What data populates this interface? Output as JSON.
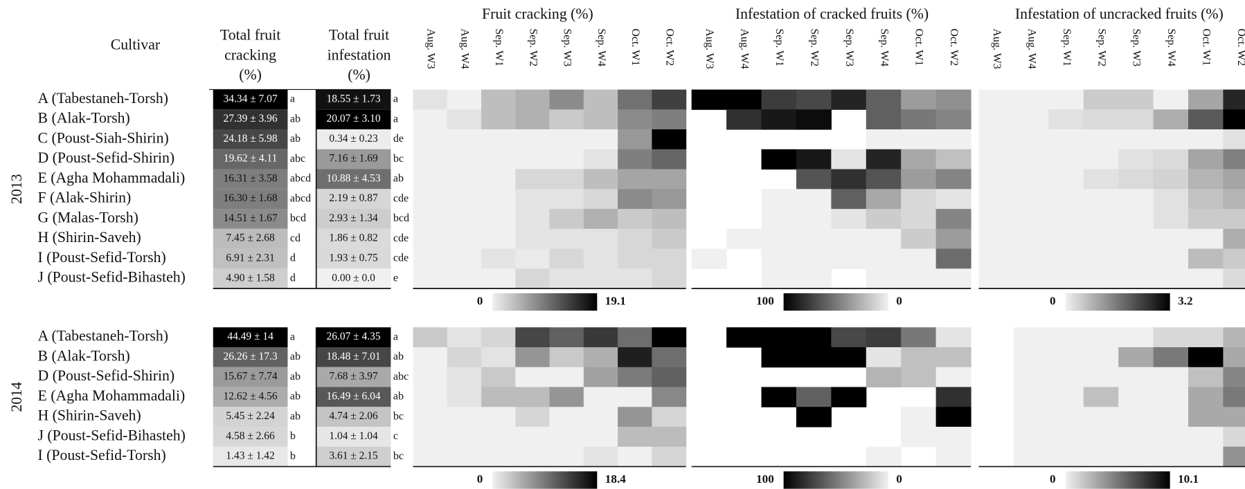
{
  "headers": {
    "cultivar": "Cultivar",
    "total_cracking": [
      "Total fruit",
      "cracking",
      "(%)"
    ],
    "total_infestation": [
      "Total fruit",
      "infestation",
      "(%)"
    ]
  },
  "panels": [
    "Fruit cracking (%)",
    "Infestation of cracked fruits (%)",
    "Infestation of uncracked fruits (%)"
  ],
  "weeks": [
    "Aug. W3",
    "Aug. W4",
    "Sep. W1",
    "Sep. W2",
    "Sep. W3",
    "Sep. W4",
    "Oct. W1",
    "Oct. W2"
  ],
  "years": [
    {
      "year": "2013",
      "scales": [
        [
          0,
          19.1
        ],
        [
          100,
          0
        ],
        [
          0,
          3.2
        ]
      ],
      "rows": [
        {
          "cultivar": "A (Tabestaneh-Torsh)",
          "cracking": {
            "mean": 34.34,
            "sd": 7.07,
            "label": "34.34 ± 7.07",
            "group": "a"
          },
          "infestation": {
            "mean": 18.55,
            "sd": 1.73,
            "label": "18.55 ± 1.73",
            "group": "a"
          },
          "heat": [
            [
              1,
              0,
              4,
              5,
              8,
              4,
              10,
              14
            ],
            [
              100,
              100,
              75,
              70,
              85,
              60,
              35,
              40
            ],
            [
              0,
              0,
              0,
              0.5,
              0.5,
              0,
              1,
              2.7
            ]
          ]
        },
        {
          "cultivar": "B (Alak-Torsh)",
          "cracking": {
            "mean": 27.39,
            "sd": 3.96,
            "label": "27.39 ± 3.96",
            "group": "ab"
          },
          "infestation": {
            "mean": 20.07,
            "sd": 3.1,
            "label": "20.07 ± 3.10",
            "group": "a"
          },
          "heat": [
            [
              0,
              1,
              4,
              5,
              3,
              4,
              8,
              9
            ],
            [
              null,
              80,
              90,
              95,
              null,
              60,
              50,
              45
            ],
            [
              0,
              0,
              0.2,
              0.3,
              0.3,
              0.9,
              2,
              3.2
            ]
          ]
        },
        {
          "cultivar": "C (Poust-Siah-Shirin)",
          "cracking": {
            "mean": 24.18,
            "sd": 5.98,
            "label": "24.18 ± 5.98",
            "group": "ab"
          },
          "infestation": {
            "mean": 0.34,
            "sd": 0.23,
            "label": "0.34 ± 0.23",
            "group": "de"
          },
          "heat": [
            [
              0,
              0,
              0,
              0,
              0,
              0,
              7,
              19.1
            ],
            [
              null,
              null,
              null,
              null,
              null,
              0,
              0,
              0
            ],
            [
              0,
              0,
              0,
              0,
              0,
              0,
              0,
              0.2
            ]
          ]
        },
        {
          "cultivar": "D (Poust-Sefid-Shirin)",
          "cracking": {
            "mean": 19.62,
            "sd": 4.11,
            "label": "19.62 ± 4.11",
            "group": "abc"
          },
          "infestation": {
            "mean": 7.16,
            "sd": 1.69,
            "label": "7.16 ± 1.69",
            "group": "bc"
          },
          "heat": [
            [
              0,
              0,
              0,
              0,
              0,
              1,
              9,
              11
            ],
            [
              null,
              null,
              100,
              90,
              5,
              85,
              30,
              20
            ],
            [
              0,
              0,
              0,
              0,
              0.2,
              0.3,
              1,
              1.5
            ]
          ]
        },
        {
          "cultivar": "E (Agha Mohammadali)",
          "cracking": {
            "mean": 16.31,
            "sd": 3.58,
            "label": "16.31 ± 3.58",
            "group": "abcd"
          },
          "infestation": {
            "mean": 10.88,
            "sd": 4.53,
            "label": "10.88 ± 4.53",
            "group": "ab"
          },
          "heat": [
            [
              0,
              0,
              0,
              2,
              2,
              4,
              6,
              6
            ],
            [
              null,
              null,
              null,
              65,
              80,
              65,
              35,
              45
            ],
            [
              0,
              0,
              0,
              0.2,
              0.3,
              0.4,
              0.8,
              1
            ]
          ]
        },
        {
          "cultivar": "F (Alak-Shirin)",
          "cracking": {
            "mean": 16.3,
            "sd": 1.68,
            "label": "16.30 ± 1.68",
            "group": "abcd"
          },
          "infestation": {
            "mean": 2.19,
            "sd": 0.87,
            "label": "2.19 ± 0.87",
            "group": "cde"
          },
          "heat": [
            [
              0,
              0,
              0,
              1,
              1,
              2,
              8,
              7
            ],
            [
              null,
              null,
              0,
              0,
              60,
              30,
              10,
              5
            ],
            [
              0,
              0,
              0,
              0,
              0,
              0.2,
              0.6,
              0.8
            ]
          ]
        },
        {
          "cultivar": "G (Malas-Torsh)",
          "cracking": {
            "mean": 14.51,
            "sd": 1.67,
            "label": "14.51 ± 1.67",
            "group": "bcd"
          },
          "infestation": {
            "mean": 2.93,
            "sd": 1.34,
            "label": "2.93 ± 1.34",
            "group": "bcd"
          },
          "heat": [
            [
              0,
              0,
              0,
              1,
              3,
              5,
              3,
              4
            ],
            [
              null,
              null,
              0,
              0,
              5,
              15,
              10,
              45
            ],
            [
              0,
              0,
              0,
              0,
              0,
              0.2,
              0.5,
              0.5
            ]
          ]
        },
        {
          "cultivar": "H (Shirin-Saveh)",
          "cracking": {
            "mean": 7.45,
            "sd": 2.68,
            "label": "7.45 ± 2.68",
            "group": "cd"
          },
          "infestation": {
            "mean": 1.86,
            "sd": 0.82,
            "label": "1.86 ± 0.82",
            "group": "cde"
          },
          "heat": [
            [
              0,
              0,
              0,
              1,
              1,
              1,
              2,
              3
            ],
            [
              null,
              0,
              0,
              0,
              0,
              0,
              15,
              35
            ],
            [
              0,
              0,
              0,
              0,
              0,
              0,
              0,
              0.9
            ]
          ]
        },
        {
          "cultivar": "I (Poust-Sefid-Torsh)",
          "cracking": {
            "mean": 6.91,
            "sd": 2.31,
            "label": "6.91 ± 2.31",
            "group": "d"
          },
          "infestation": {
            "mean": 1.93,
            "sd": 0.75,
            "label": "1.93 ± 0.75",
            "group": "cde"
          },
          "heat": [
            [
              0,
              0,
              1,
              0.5,
              2,
              1,
              2,
              2
            ],
            [
              0,
              null,
              0,
              0,
              0,
              0,
              0,
              55
            ],
            [
              0,
              0,
              0,
              0,
              0,
              0,
              0.7,
              0.5
            ]
          ]
        },
        {
          "cultivar": "J (Poust-Sefid-Bihasteh)",
          "cracking": {
            "mean": 4.9,
            "sd": 1.58,
            "label": "4.90 ± 1.58",
            "group": "d"
          },
          "infestation": {
            "mean": 0.0,
            "sd": 0.0,
            "label": "0.00 ± 0.0",
            "group": "e"
          },
          "heat": [
            [
              0,
              0,
              0,
              2,
              1,
              1,
              1,
              2
            ],
            [
              null,
              null,
              0,
              0,
              null,
              0,
              0,
              0
            ],
            [
              0,
              0,
              0,
              0,
              0,
              0,
              0,
              0.3
            ]
          ]
        }
      ]
    },
    {
      "year": "2014",
      "scales": [
        [
          0,
          18.4
        ],
        [
          100,
          0
        ],
        [
          0,
          10.1
        ]
      ],
      "rows": [
        {
          "cultivar": "A (Tabestaneh-Torsh)",
          "cracking": {
            "mean": 44.49,
            "sd": 14,
            "label": "44.49 ± 14",
            "group": "a"
          },
          "infestation": {
            "mean": 26.07,
            "sd": 4.35,
            "label": "26.07 ± 4.35",
            "group": "a"
          },
          "heat": [
            [
              3,
              1,
              2,
              13,
              11,
              14,
              10,
              18.4
            ],
            [
              null,
              100,
              100,
              100,
              70,
              75,
              50,
              5
            ],
            [
              null,
              0,
              0,
              0,
              0,
              1,
              1,
              2.5
            ]
          ]
        },
        {
          "cultivar": "B (Alak-Torsh)",
          "cracking": {
            "mean": 26.26,
            "sd": 17.3,
            "label": "26.26 ± 17.3",
            "group": "ab"
          },
          "infestation": {
            "mean": 18.48,
            "sd": 7.01,
            "label": "18.48 ± 7.01",
            "group": "ab"
          },
          "heat": [
            [
              0,
              2,
              1,
              7,
              3,
              5,
              16,
              10
            ],
            [
              null,
              null,
              100,
              100,
              100,
              5,
              20,
              20
            ],
            [
              null,
              0,
              0,
              0,
              3,
              5,
              10.1,
              3
            ]
          ]
        },
        {
          "cultivar": "D (Poust-Sefid-Shirin)",
          "cracking": {
            "mean": 15.67,
            "sd": 7.74,
            "label": "15.67 ± 7.74",
            "group": "ab"
          },
          "infestation": {
            "mean": 7.68,
            "sd": 3.97,
            "label": "7.68 ± 3.97",
            "group": "abc"
          },
          "heat": [
            [
              0,
              1,
              3,
              0,
              0,
              6,
              9,
              11
            ],
            [
              null,
              null,
              null,
              null,
              null,
              25,
              20,
              0
            ],
            [
              null,
              0,
              0,
              0,
              0,
              0,
              2,
              4.5
            ]
          ]
        },
        {
          "cultivar": "E (Agha Mohammadali)",
          "cracking": {
            "mean": 12.62,
            "sd": 4.56,
            "label": "12.62 ± 4.56",
            "group": "ab"
          },
          "infestation": {
            "mean": 16.49,
            "sd": 6.04,
            "label": "16.49 ± 6.04",
            "group": "ab"
          },
          "heat": [
            [
              0,
              1,
              4,
              4,
              7,
              0,
              0,
              8
            ],
            [
              null,
              null,
              100,
              60,
              100,
              null,
              null,
              80
            ],
            [
              null,
              0,
              0,
              2,
              0,
              0,
              3,
              5
            ]
          ]
        },
        {
          "cultivar": "H (Shirin-Saveh)",
          "cracking": {
            "mean": 5.45,
            "sd": 2.24,
            "label": "5.45 ± 2.24",
            "group": "ab"
          },
          "infestation": {
            "mean": 4.74,
            "sd": 2.06,
            "label": "4.74 ± 2.06",
            "group": "bc"
          },
          "heat": [
            [
              0,
              0,
              0,
              2,
              0,
              0,
              7,
              2
            ],
            [
              null,
              null,
              null,
              100,
              null,
              null,
              0,
              100
            ],
            [
              null,
              0,
              0,
              0,
              0,
              0,
              3,
              3
            ]
          ]
        },
        {
          "cultivar": "J (Poust-Sefid-Bihasteh)",
          "cracking": {
            "mean": 4.58,
            "sd": 2.66,
            "label": "4.58 ± 2.66",
            "group": "b"
          },
          "infestation": {
            "mean": 1.04,
            "sd": 1.04,
            "label": "1.04 ± 1.04",
            "group": "c"
          },
          "heat": [
            [
              0,
              0,
              0,
              0,
              0,
              0,
              4,
              4
            ],
            [
              null,
              null,
              null,
              null,
              null,
              null,
              0,
              0
            ],
            [
              null,
              0,
              0,
              0,
              0,
              0,
              0,
              1
            ]
          ]
        },
        {
          "cultivar": "I (Poust-Sefid-Torsh)",
          "cracking": {
            "mean": 1.43,
            "sd": 1.42,
            "label": "1.43 ± 1.42",
            "group": "b"
          },
          "infestation": {
            "mean": 3.61,
            "sd": 2.15,
            "label": "3.61 ± 2.15",
            "group": "bc"
          },
          "heat": [
            [
              0,
              0,
              0,
              0,
              0,
              1,
              0,
              2
            ],
            [
              null,
              null,
              null,
              null,
              null,
              0,
              null,
              0
            ],
            [
              null,
              0,
              0,
              0,
              0,
              0,
              0,
              4
            ]
          ]
        }
      ]
    }
  ]
}
